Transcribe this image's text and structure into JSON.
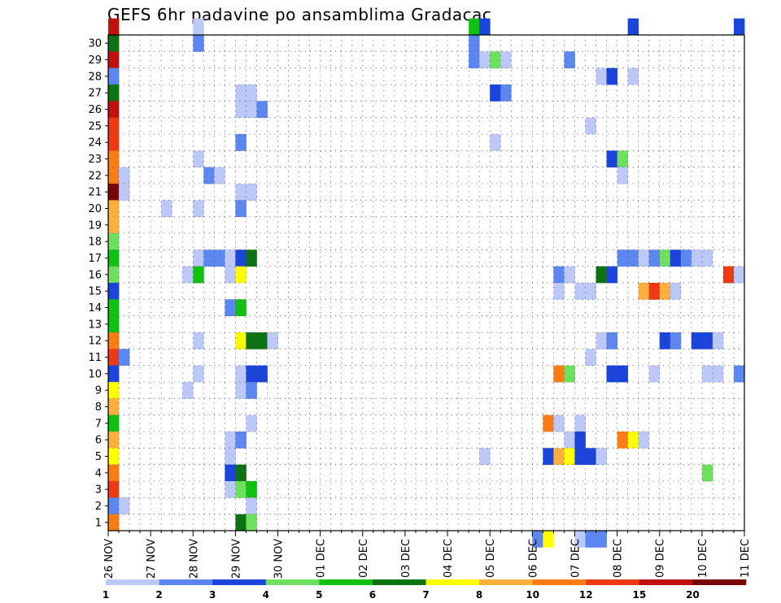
{
  "chart_data": {
    "type": "heatmap",
    "title": "GEFS 6hr padavine po ansamblima Gradacac",
    "y_tick_labels": [
      "1",
      "2",
      "3",
      "4",
      "5",
      "6",
      "7",
      "8",
      "9",
      "10",
      "11",
      "12",
      "13",
      "14",
      "15",
      "16",
      "17",
      "18",
      "19",
      "20",
      "21",
      "22",
      "23",
      "24",
      "25",
      "26",
      "27",
      "28",
      "29",
      "30"
    ],
    "x_tick_labels": [
      "26 NOV",
      "27 NOV",
      "28 NOV",
      "29 NOV",
      "30 NOV",
      "01 DEC",
      "02 DEC",
      "03 DEC",
      "04 DEC",
      "05 DEC",
      "06 DEC",
      "07 DEC",
      "08 DEC",
      "09 DEC",
      "10 DEC",
      "11 DEC"
    ],
    "x_range": [
      "26 NOV",
      "11 DEC"
    ],
    "y_range": [
      0,
      30
    ],
    "steps_per_day": 4,
    "grid": true,
    "colorbar": {
      "labels": [
        "1",
        "2",
        "3",
        "4",
        "5",
        "6",
        "7",
        "8",
        "10",
        "12",
        "15",
        "20"
      ],
      "colors": [
        "#bcc8f8",
        "#5c86f0",
        "#1a44dc",
        "#6ee060",
        "#12c012",
        "#0c7212",
        "#ffff00",
        "#ffb03c",
        "#ff7c14",
        "#ee3a14",
        "#c01010",
        "#7a0404"
      ]
    },
    "cells": [
      {
        "m": 30,
        "s": 0,
        "c": 11
      },
      {
        "m": 30,
        "s": 8,
        "c": 1
      },
      {
        "m": 30,
        "s": 34,
        "c": 5
      },
      {
        "m": 30,
        "s": 35,
        "c": 3
      },
      {
        "m": 30,
        "s": 49,
        "c": 3
      },
      {
        "m": 30,
        "s": 59,
        "c": 3
      },
      {
        "m": 29,
        "s": 0,
        "c": 6
      },
      {
        "m": 29,
        "s": 8,
        "c": 2
      },
      {
        "m": 29,
        "s": 34,
        "c": 2
      },
      {
        "m": 28,
        "s": 0,
        "c": 11
      },
      {
        "m": 28,
        "s": 34,
        "c": 2
      },
      {
        "m": 28,
        "s": 35,
        "c": 1
      },
      {
        "m": 28,
        "s": 36,
        "c": 4
      },
      {
        "m": 28,
        "s": 37,
        "c": 1
      },
      {
        "m": 28,
        "s": 43,
        "c": 2
      },
      {
        "m": 27,
        "s": 0,
        "c": 2
      },
      {
        "m": 27,
        "s": 46,
        "c": 1
      },
      {
        "m": 27,
        "s": 47,
        "c": 3
      },
      {
        "m": 27,
        "s": 49,
        "c": 1
      },
      {
        "m": 26,
        "s": 0,
        "c": 6
      },
      {
        "m": 26,
        "s": 12,
        "c": 1
      },
      {
        "m": 26,
        "s": 13,
        "c": 1
      },
      {
        "m": 26,
        "s": 36,
        "c": 3
      },
      {
        "m": 26,
        "s": 37,
        "c": 2
      },
      {
        "m": 25,
        "s": 0,
        "c": 11
      },
      {
        "m": 25,
        "s": 12,
        "c": 1
      },
      {
        "m": 25,
        "s": 13,
        "c": 1
      },
      {
        "m": 25,
        "s": 14,
        "c": 2
      },
      {
        "m": 24,
        "s": 0,
        "c": 10
      },
      {
        "m": 24,
        "s": 45,
        "c": 1
      },
      {
        "m": 23,
        "s": 0,
        "c": 10
      },
      {
        "m": 23,
        "s": 12,
        "c": 2
      },
      {
        "m": 23,
        "s": 36,
        "c": 1
      },
      {
        "m": 22,
        "s": 0,
        "c": 9
      },
      {
        "m": 22,
        "s": 8,
        "c": 1
      },
      {
        "m": 22,
        "s": 47,
        "c": 3
      },
      {
        "m": 22,
        "s": 48,
        "c": 4
      },
      {
        "m": 21,
        "s": 0,
        "c": 9
      },
      {
        "m": 21,
        "s": 1,
        "c": 1
      },
      {
        "m": 21,
        "s": 9,
        "c": 2
      },
      {
        "m": 21,
        "s": 10,
        "c": 1
      },
      {
        "m": 21,
        "s": 48,
        "c": 1
      },
      {
        "m": 20,
        "s": 0,
        "c": 12
      },
      {
        "m": 20,
        "s": 1,
        "c": 1
      },
      {
        "m": 20,
        "s": 12,
        "c": 1
      },
      {
        "m": 20,
        "s": 13,
        "c": 1
      },
      {
        "m": 19,
        "s": 0,
        "c": 8
      },
      {
        "m": 19,
        "s": 5,
        "c": 1
      },
      {
        "m": 19,
        "s": 8,
        "c": 1
      },
      {
        "m": 19,
        "s": 12,
        "c": 2
      },
      {
        "m": 18,
        "s": 0,
        "c": 8
      },
      {
        "m": 17,
        "s": 0,
        "c": 4
      },
      {
        "m": 16,
        "s": 0,
        "c": 5
      },
      {
        "m": 16,
        "s": 8,
        "c": 1
      },
      {
        "m": 16,
        "s": 9,
        "c": 2
      },
      {
        "m": 16,
        "s": 10,
        "c": 2
      },
      {
        "m": 16,
        "s": 11,
        "c": 1
      },
      {
        "m": 16,
        "s": 12,
        "c": 3
      },
      {
        "m": 16,
        "s": 13,
        "c": 6
      },
      {
        "m": 16,
        "s": 48,
        "c": 2
      },
      {
        "m": 16,
        "s": 49,
        "c": 2
      },
      {
        "m": 16,
        "s": 50,
        "c": 1
      },
      {
        "m": 16,
        "s": 51,
        "c": 2
      },
      {
        "m": 16,
        "s": 52,
        "c": 4
      },
      {
        "m": 16,
        "s": 53,
        "c": 3
      },
      {
        "m": 16,
        "s": 54,
        "c": 2
      },
      {
        "m": 16,
        "s": 55,
        "c": 1
      },
      {
        "m": 16,
        "s": 56,
        "c": 1
      },
      {
        "m": 15,
        "s": 0,
        "c": 4
      },
      {
        "m": 15,
        "s": 7,
        "c": 1
      },
      {
        "m": 15,
        "s": 8,
        "c": 5
      },
      {
        "m": 15,
        "s": 11,
        "c": 1
      },
      {
        "m": 15,
        "s": 12,
        "c": 7
      },
      {
        "m": 15,
        "s": 42,
        "c": 2
      },
      {
        "m": 15,
        "s": 43,
        "c": 1
      },
      {
        "m": 15,
        "s": 46,
        "c": 6
      },
      {
        "m": 15,
        "s": 47,
        "c": 3
      },
      {
        "m": 15,
        "s": 58,
        "c": 10
      },
      {
        "m": 15,
        "s": 59,
        "c": 1
      },
      {
        "m": 14,
        "s": 0,
        "c": 3
      },
      {
        "m": 14,
        "s": 42,
        "c": 1
      },
      {
        "m": 14,
        "s": 44,
        "c": 1
      },
      {
        "m": 14,
        "s": 45,
        "c": 1
      },
      {
        "m": 14,
        "s": 50,
        "c": 8
      },
      {
        "m": 14,
        "s": 51,
        "c": 10
      },
      {
        "m": 14,
        "s": 52,
        "c": 8
      },
      {
        "m": 14,
        "s": 53,
        "c": 1
      },
      {
        "m": 13,
        "s": 0,
        "c": 5
      },
      {
        "m": 13,
        "s": 11,
        "c": 2
      },
      {
        "m": 13,
        "s": 12,
        "c": 5
      },
      {
        "m": 12,
        "s": 0,
        "c": 5
      },
      {
        "m": 11,
        "s": 0,
        "c": 9
      },
      {
        "m": 11,
        "s": 8,
        "c": 1
      },
      {
        "m": 11,
        "s": 12,
        "c": 7
      },
      {
        "m": 11,
        "s": 13,
        "c": 6
      },
      {
        "m": 11,
        "s": 14,
        "c": 6
      },
      {
        "m": 11,
        "s": 15,
        "c": 1
      },
      {
        "m": 11,
        "s": 46,
        "c": 1
      },
      {
        "m": 11,
        "s": 47,
        "c": 2
      },
      {
        "m": 11,
        "s": 52,
        "c": 3
      },
      {
        "m": 11,
        "s": 53,
        "c": 2
      },
      {
        "m": 11,
        "s": 55,
        "c": 3
      },
      {
        "m": 11,
        "s": 56,
        "c": 3
      },
      {
        "m": 11,
        "s": 57,
        "c": 1
      },
      {
        "m": 10,
        "s": 0,
        "c": 10
      },
      {
        "m": 10,
        "s": 1,
        "c": 2
      },
      {
        "m": 10,
        "s": 45,
        "c": 1
      },
      {
        "m": 9,
        "s": 0,
        "c": 3
      },
      {
        "m": 9,
        "s": 8,
        "c": 1
      },
      {
        "m": 9,
        "s": 12,
        "c": 1
      },
      {
        "m": 9,
        "s": 13,
        "c": 3
      },
      {
        "m": 9,
        "s": 14,
        "c": 3
      },
      {
        "m": 9,
        "s": 42,
        "c": 9
      },
      {
        "m": 9,
        "s": 43,
        "c": 4
      },
      {
        "m": 9,
        "s": 47,
        "c": 3
      },
      {
        "m": 9,
        "s": 48,
        "c": 3
      },
      {
        "m": 9,
        "s": 51,
        "c": 1
      },
      {
        "m": 9,
        "s": 56,
        "c": 1
      },
      {
        "m": 9,
        "s": 57,
        "c": 1
      },
      {
        "m": 9,
        "s": 59,
        "c": 2
      },
      {
        "m": 8,
        "s": 0,
        "c": 7
      },
      {
        "m": 8,
        "s": 7,
        "c": 1
      },
      {
        "m": 8,
        "s": 12,
        "c": 1
      },
      {
        "m": 8,
        "s": 13,
        "c": 2
      },
      {
        "m": 7,
        "s": 0,
        "c": 8
      },
      {
        "m": 6,
        "s": 0,
        "c": 5
      },
      {
        "m": 6,
        "s": 13,
        "c": 1
      },
      {
        "m": 6,
        "s": 41,
        "c": 9
      },
      {
        "m": 6,
        "s": 42,
        "c": 1
      },
      {
        "m": 6,
        "s": 44,
        "c": 1
      },
      {
        "m": 5,
        "s": 0,
        "c": 8
      },
      {
        "m": 5,
        "s": 11,
        "c": 1
      },
      {
        "m": 5,
        "s": 12,
        "c": 2
      },
      {
        "m": 5,
        "s": 43,
        "c": 1
      },
      {
        "m": 5,
        "s": 44,
        "c": 3
      },
      {
        "m": 5,
        "s": 48,
        "c": 9
      },
      {
        "m": 5,
        "s": 49,
        "c": 7
      },
      {
        "m": 5,
        "s": 50,
        "c": 1
      },
      {
        "m": 4,
        "s": 0,
        "c": 7
      },
      {
        "m": 4,
        "s": 11,
        "c": 1
      },
      {
        "m": 4,
        "s": 35,
        "c": 1
      },
      {
        "m": 4,
        "s": 41,
        "c": 3
      },
      {
        "m": 4,
        "s": 42,
        "c": 8
      },
      {
        "m": 4,
        "s": 43,
        "c": 7
      },
      {
        "m": 4,
        "s": 44,
        "c": 3
      },
      {
        "m": 4,
        "s": 45,
        "c": 3
      },
      {
        "m": 4,
        "s": 46,
        "c": 1
      },
      {
        "m": 3,
        "s": 0,
        "c": 9
      },
      {
        "m": 3,
        "s": 11,
        "c": 3
      },
      {
        "m": 3,
        "s": 12,
        "c": 6
      },
      {
        "m": 3,
        "s": 56,
        "c": 4
      },
      {
        "m": 2,
        "s": 0,
        "c": 10
      },
      {
        "m": 2,
        "s": 11,
        "c": 1
      },
      {
        "m": 2,
        "s": 12,
        "c": 4
      },
      {
        "m": 2,
        "s": 13,
        "c": 5
      },
      {
        "m": 1,
        "s": 0,
        "c": 2
      },
      {
        "m": 1,
        "s": 1,
        "c": 1
      },
      {
        "m": 1,
        "s": 13,
        "c": 1
      },
      {
        "m": 0,
        "s": 0,
        "c": 9
      },
      {
        "m": 0,
        "s": 12,
        "c": 6
      },
      {
        "m": 0,
        "s": 13,
        "c": 4
      },
      {
        "m": -1,
        "s": 40,
        "c": 2
      },
      {
        "m": -1,
        "s": 41,
        "c": 7
      },
      {
        "m": -1,
        "s": 44,
        "c": 1
      },
      {
        "m": -1,
        "s": 45,
        "c": 2
      },
      {
        "m": -1,
        "s": 46,
        "c": 2
      }
    ]
  }
}
